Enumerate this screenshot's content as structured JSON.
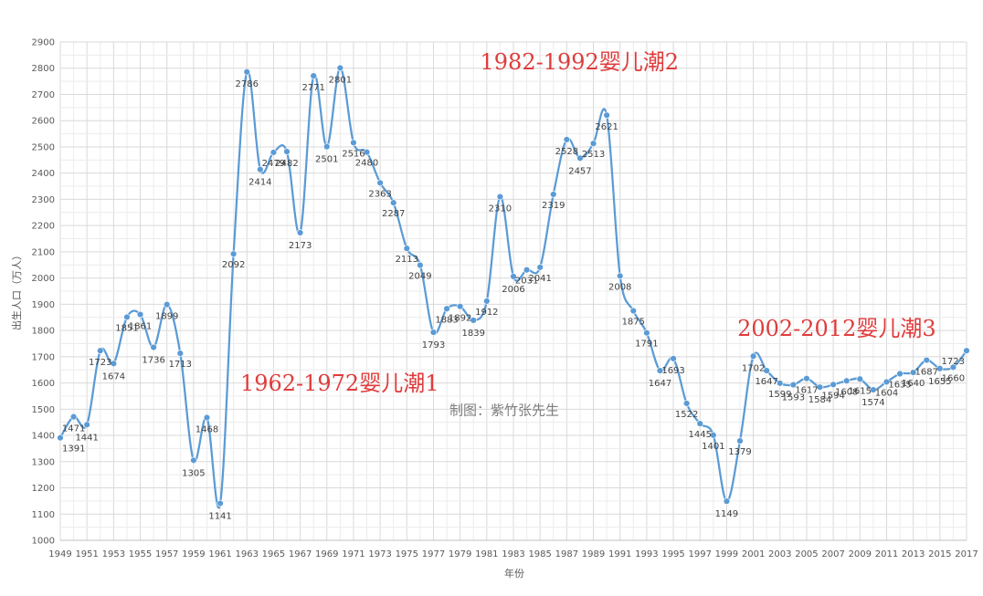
{
  "chart_data": {
    "type": "line",
    "x": [
      1949,
      1950,
      1951,
      1952,
      1953,
      1954,
      1955,
      1956,
      1957,
      1958,
      1959,
      1960,
      1961,
      1962,
      1963,
      1964,
      1965,
      1966,
      1967,
      1968,
      1969,
      1970,
      1971,
      1972,
      1973,
      1974,
      1975,
      1976,
      1977,
      1978,
      1979,
      1980,
      1981,
      1982,
      1983,
      1984,
      1985,
      1986,
      1987,
      1988,
      1989,
      1990,
      1991,
      1992,
      1993,
      1994,
      1995,
      1996,
      1997,
      1998,
      1999,
      2000,
      2001,
      2002,
      2003,
      2004,
      2005,
      2006,
      2007,
      2008,
      2009,
      2010,
      2011,
      2012,
      2013,
      2014,
      2015,
      2016,
      2017
    ],
    "values": [
      1391,
      1471,
      1441,
      1723,
      1674,
      1851,
      1861,
      1736,
      1899,
      1713,
      1305,
      1468,
      1141,
      2092,
      2786,
      2414,
      2479,
      2482,
      2173,
      2771,
      2501,
      2801,
      2516,
      2480,
      2363,
      2287,
      2113,
      2049,
      1793,
      1883,
      1892,
      1839,
      1912,
      2310,
      2006,
      2031,
      2041,
      2319,
      2528,
      2457,
      2513,
      2621,
      2008,
      1875,
      1791,
      1647,
      1693,
      1522,
      1445,
      1401,
      1149,
      1379,
      1702,
      1647,
      1599,
      1593,
      1617,
      1584,
      1594,
      1608,
      1615,
      1574,
      1604,
      1635,
      1640,
      1687,
      1655,
      1660,
      1723
    ],
    "data_labels": [
      "1391",
      "1471",
      "1441",
      "1723",
      "1674",
      "1851",
      "1861",
      "1736",
      "1899",
      "1713",
      "1305",
      "1468",
      "1141",
      "2092",
      "2786",
      "2414",
      "2479",
      "2482",
      "2173",
      "2771",
      "2501",
      "2801",
      "2516",
      "2480",
      "2363",
      "2287",
      "2113",
      "2049",
      "1793",
      "1883",
      "1892",
      "1839",
      "1912",
      "2310",
      "2006",
      "2031",
      "2041",
      "2319",
      "2528",
      "2457",
      "2513",
      "2621",
      "2008",
      "1875",
      "1791",
      "1647",
      "1693",
      "1522",
      "1445",
      "1401",
      "1149",
      "1379",
      "1702",
      "1647",
      "1599",
      "1593",
      "1617",
      "1584",
      "1594",
      "1608",
      "1615",
      "1574",
      "1604",
      "1635",
      "1640",
      "1687",
      "1655",
      "1660",
      "1723"
    ],
    "x_ticks": [
      "1949",
      "1951",
      "1953",
      "1955",
      "1957",
      "1959",
      "1961",
      "1963",
      "1965",
      "1967",
      "1969",
      "1971",
      "1973",
      "1975",
      "1977",
      "1979",
      "1981",
      "1983",
      "1985",
      "1987",
      "1989",
      "1991",
      "1993",
      "1995",
      "1997",
      "1999",
      "2001",
      "2003",
      "2005",
      "2007",
      "2009",
      "2011",
      "2013",
      "2015",
      "2017"
    ],
    "y_ticks": [
      "1000",
      "1100",
      "1200",
      "1300",
      "1400",
      "1500",
      "1600",
      "1700",
      "1800",
      "1900",
      "2000",
      "2100",
      "2200",
      "2300",
      "2400",
      "2500",
      "2600",
      "2700",
      "2800",
      "2900"
    ],
    "xlim": [
      1949,
      2017
    ],
    "ylim": [
      1000,
      2900
    ],
    "xlabel": "年份",
    "ylabel": "出生人口（万人）",
    "grid": true,
    "smooth": true,
    "line_color": "#5b9bd5",
    "annotation_color": "#e03c3c",
    "annotations": [
      {
        "text": "1962-1972婴儿潮1",
        "x": 1962.5,
        "y": 1570
      },
      {
        "text": "1982-1992婴儿潮2",
        "x": 1980.5,
        "y": 2795
      },
      {
        "text": "2002-2012婴儿潮3",
        "x": 1999.8,
        "y": 1780
      },
      {
        "text": "制图：紫竹张先生",
        "x": 1978.2,
        "y": 1478
      }
    ]
  }
}
